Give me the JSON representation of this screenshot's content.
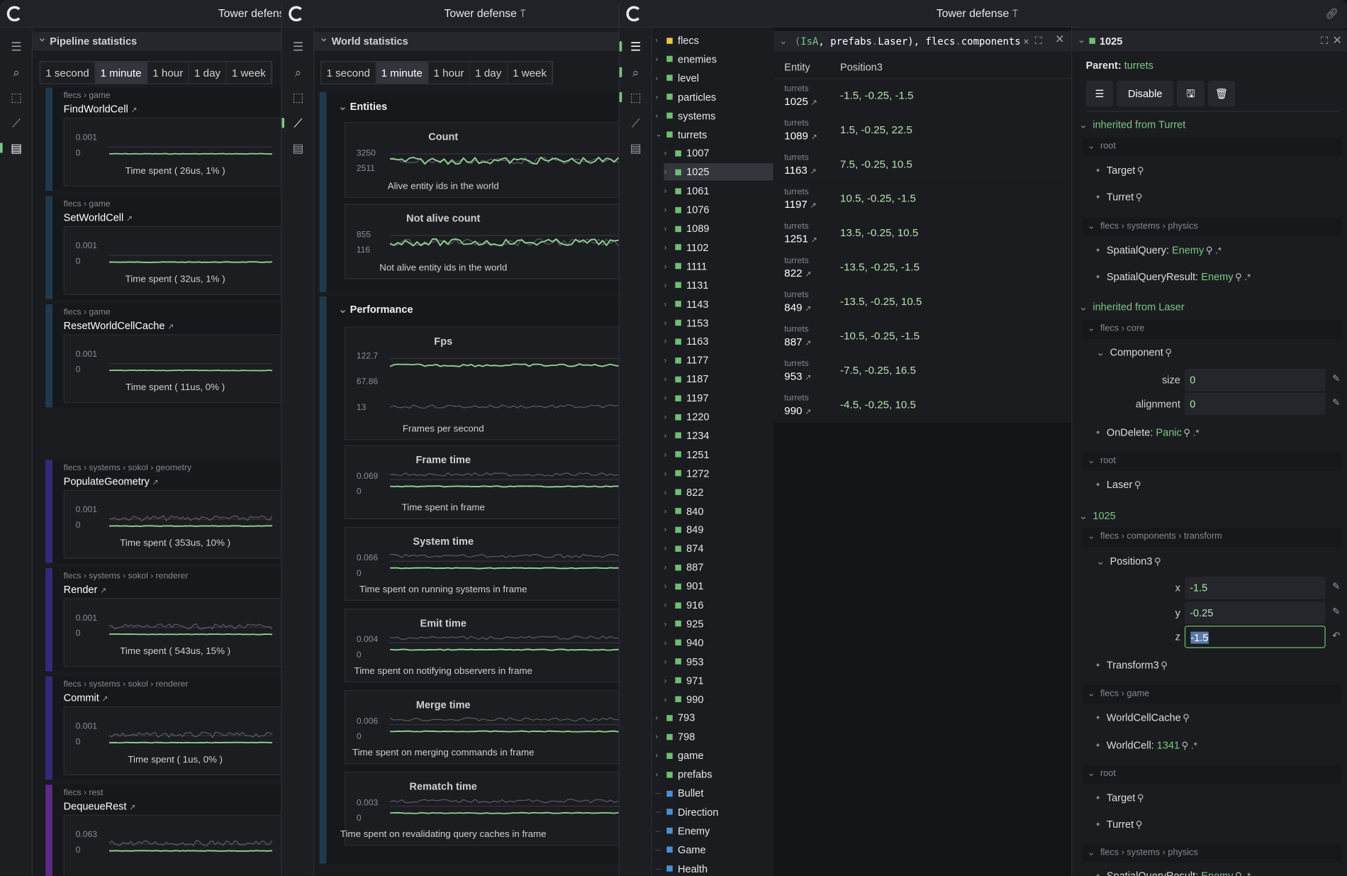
{
  "app_title": "Tower defense",
  "time_ranges": [
    "1 second",
    "1 minute",
    "1 hour",
    "1 day",
    "1 week"
  ],
  "selected_range": "1 minute",
  "pipeline": {
    "title": "Pipeline statistics",
    "systems": [
      {
        "path": "flecs › game",
        "name": "FindWorldCell",
        "ticks": [
          "0.001",
          "0"
        ],
        "caption": "Time spent ( 26us, 1% )",
        "color": "#1f3a4c"
      },
      {
        "path": "flecs › game",
        "name": "SetWorldCell",
        "ticks": [
          "0.001",
          "0"
        ],
        "caption": "Time spent ( 32us, 1% )",
        "color": "#1f3a4c"
      },
      {
        "path": "flecs › game",
        "name": "ResetWorldCellCache",
        "ticks": [
          "0.001",
          "0"
        ],
        "caption": "Time spent ( 11us, 0% )",
        "color": "#1f3a4c"
      },
      {
        "path": "flecs › systems › sokol › geometry",
        "name": "PopulateGeometry",
        "ticks": [
          "0.001",
          "0"
        ],
        "caption": "Time spent ( 353us, 10% )",
        "color": "#34297a"
      },
      {
        "path": "flecs › systems › sokol › renderer",
        "name": "Render",
        "ticks": [
          "0.001",
          "0"
        ],
        "caption": "Time spent ( 543us, 15% )",
        "color": "#34297a"
      },
      {
        "path": "flecs › systems › sokol › renderer",
        "name": "Commit",
        "ticks": [
          "0.001",
          "0"
        ],
        "caption": "Time spent ( 1us, 0% )",
        "color": "#34297a"
      },
      {
        "path": "flecs › rest",
        "name": "DequeueRest",
        "ticks": [
          "0.063",
          "0"
        ],
        "caption": "",
        "color": "#5e2a87"
      }
    ]
  },
  "world": {
    "title": "World statistics",
    "sections": [
      {
        "title": "Entities",
        "charts": [
          {
            "title": "Count",
            "ticks": [
              "3250",
              "2511"
            ],
            "caption": "Alive entity ids in the world"
          },
          {
            "title": "Not alive count",
            "ticks": [
              "855",
              "116"
            ],
            "caption": "Not alive entity ids in the world"
          }
        ]
      },
      {
        "title": "Performance",
        "charts": [
          {
            "title": "Fps",
            "ticks": [
              "122.7",
              "67.86",
              "13"
            ],
            "caption": "Frames per second"
          },
          {
            "title": "Frame time",
            "ticks": [
              "0.069",
              "0"
            ],
            "caption": "Time spent in frame"
          },
          {
            "title": "System time",
            "ticks": [
              "0.066",
              "0"
            ],
            "caption": "Time spent on running systems in frame"
          },
          {
            "title": "Emit time",
            "ticks": [
              "0.004",
              "0"
            ],
            "caption": "Time spent on notifying observers in frame"
          },
          {
            "title": "Merge time",
            "ticks": [
              "0.006",
              "0"
            ],
            "caption": "Time spent on merging commands in frame"
          },
          {
            "title": "Rematch time",
            "ticks": [
              "0.003",
              "0"
            ],
            "caption": "Time spent on revalidating query caches in frame"
          }
        ]
      }
    ]
  },
  "tree": {
    "items": [
      {
        "label": "flecs",
        "color": "#e8c547",
        "level": 0,
        "chev": true
      },
      {
        "label": "enemies",
        "color": "#6fbf73",
        "level": 0,
        "chev": true
      },
      {
        "label": "level",
        "color": "#6fbf73",
        "level": 0,
        "chev": true
      },
      {
        "label": "particles",
        "color": "#6fbf73",
        "level": 0,
        "chev": true
      },
      {
        "label": "systems",
        "color": "#6fbf73",
        "level": 0,
        "chev": true
      },
      {
        "label": "turrets",
        "color": "#6fbf73",
        "level": 0,
        "chev": true,
        "open": true
      },
      {
        "label": "1007",
        "color": "#6fbf73",
        "level": 1,
        "chev": true
      },
      {
        "label": "1025",
        "color": "#6fbf73",
        "level": 1,
        "chev": true,
        "selected": true
      },
      {
        "label": "1061",
        "color": "#6fbf73",
        "level": 1,
        "chev": true
      },
      {
        "label": "1076",
        "color": "#6fbf73",
        "level": 1,
        "chev": true
      },
      {
        "label": "1089",
        "color": "#6fbf73",
        "level": 1,
        "chev": true
      },
      {
        "label": "1102",
        "color": "#6fbf73",
        "level": 1,
        "chev": true
      },
      {
        "label": "1111",
        "color": "#6fbf73",
        "level": 1,
        "chev": true
      },
      {
        "label": "1131",
        "color": "#6fbf73",
        "level": 1,
        "chev": true
      },
      {
        "label": "1143",
        "color": "#6fbf73",
        "level": 1,
        "chev": true
      },
      {
        "label": "1153",
        "color": "#6fbf73",
        "level": 1,
        "chev": true
      },
      {
        "label": "1163",
        "color": "#6fbf73",
        "level": 1,
        "chev": true
      },
      {
        "label": "1177",
        "color": "#6fbf73",
        "level": 1,
        "chev": true
      },
      {
        "label": "1187",
        "color": "#6fbf73",
        "level": 1,
        "chev": true
      },
      {
        "label": "1197",
        "color": "#6fbf73",
        "level": 1,
        "chev": true
      },
      {
        "label": "1220",
        "color": "#6fbf73",
        "level": 1,
        "chev": true
      },
      {
        "label": "1234",
        "color": "#6fbf73",
        "level": 1,
        "chev": true
      },
      {
        "label": "1251",
        "color": "#6fbf73",
        "level": 1,
        "chev": true
      },
      {
        "label": "1272",
        "color": "#6fbf73",
        "level": 1,
        "chev": true
      },
      {
        "label": "822",
        "color": "#6fbf73",
        "level": 1,
        "chev": true
      },
      {
        "label": "840",
        "color": "#6fbf73",
        "level": 1,
        "chev": true
      },
      {
        "label": "849",
        "color": "#6fbf73",
        "level": 1,
        "chev": true
      },
      {
        "label": "874",
        "color": "#6fbf73",
        "level": 1,
        "chev": true
      },
      {
        "label": "887",
        "color": "#6fbf73",
        "level": 1,
        "chev": true
      },
      {
        "label": "901",
        "color": "#6fbf73",
        "level": 1,
        "chev": true
      },
      {
        "label": "916",
        "color": "#6fbf73",
        "level": 1,
        "chev": true
      },
      {
        "label": "925",
        "color": "#6fbf73",
        "level": 1,
        "chev": true
      },
      {
        "label": "940",
        "color": "#6fbf73",
        "level": 1,
        "chev": true
      },
      {
        "label": "953",
        "color": "#6fbf73",
        "level": 1,
        "chev": true
      },
      {
        "label": "971",
        "color": "#6fbf73",
        "level": 1,
        "chev": true
      },
      {
        "label": "990",
        "color": "#6fbf73",
        "level": 1,
        "chev": true
      },
      {
        "label": "793",
        "color": "#6fbf73",
        "level": 0,
        "chev": true
      },
      {
        "label": "798",
        "color": "#6fbf73",
        "level": 0,
        "chev": true
      },
      {
        "label": "game",
        "color": "#6fbf73",
        "level": 0,
        "chev": true
      },
      {
        "label": "prefabs",
        "color": "#6fbf73",
        "level": 0,
        "chev": true
      },
      {
        "label": "Bullet",
        "color": "#4a8fd6",
        "level": 0,
        "chev": false
      },
      {
        "label": "Direction",
        "color": "#4a8fd6",
        "level": 0,
        "chev": false
      },
      {
        "label": "Enemy",
        "color": "#4a8fd6",
        "level": 0,
        "chev": false
      },
      {
        "label": "Game",
        "color": "#4a8fd6",
        "level": 0,
        "chev": false
      },
      {
        "label": "Health",
        "color": "#4a8fd6",
        "level": 0,
        "chev": false
      }
    ]
  },
  "query": {
    "expr_parts": [
      "(",
      "IsA",
      ", prefabs",
      ".",
      "Laser), flecs",
      ".",
      "components"
    ],
    "columns": [
      "Entity",
      "Position3"
    ],
    "rows": [
      {
        "parent": "turrets",
        "entity": "1025",
        "value": "-1.5, -0.25, -1.5"
      },
      {
        "parent": "turrets",
        "entity": "1089",
        "value": "1.5, -0.25, 22.5"
      },
      {
        "parent": "turrets",
        "entity": "1163",
        "value": "7.5, -0.25, 10.5"
      },
      {
        "parent": "turrets",
        "entity": "1197",
        "value": "10.5, -0.25, -1.5"
      },
      {
        "parent": "turrets",
        "entity": "1251",
        "value": "13.5, -0.25, 10.5"
      },
      {
        "parent": "turrets",
        "entity": "822",
        "value": "-13.5, -0.25, -1.5"
      },
      {
        "parent": "turrets",
        "entity": "849",
        "value": "-13.5, -0.25, 10.5"
      },
      {
        "parent": "turrets",
        "entity": "887",
        "value": "-10.5, -0.25, -1.5"
      },
      {
        "parent": "turrets",
        "entity": "953",
        "value": "-7.5, -0.25, 16.5"
      },
      {
        "parent": "turrets",
        "entity": "990",
        "value": "-4.5, -0.25, 10.5"
      }
    ]
  },
  "inspector": {
    "entity": "1025",
    "parent_label": "Parent:",
    "parent": "turrets",
    "disable_label": "Disable",
    "items": [
      {
        "type": "section",
        "label": "inherited from Turret"
      },
      {
        "type": "group",
        "label": "root"
      },
      {
        "type": "item",
        "label": "Target"
      },
      {
        "type": "item",
        "label": "Turret"
      },
      {
        "type": "group",
        "label": "flecs › systems › physics"
      },
      {
        "type": "item",
        "label": "SpatialQuery:",
        "value": "Enemy",
        "wild": true
      },
      {
        "type": "item",
        "label": "SpatialQueryResult:",
        "value": "Enemy",
        "wild": true
      },
      {
        "type": "section",
        "label": "inherited from Laser"
      },
      {
        "type": "group",
        "label": "flecs › core"
      },
      {
        "type": "comp",
        "label": "Component"
      },
      {
        "type": "field",
        "label": "size",
        "value": "0",
        "icon": "pencil"
      },
      {
        "type": "field",
        "label": "alignment",
        "value": "0",
        "icon": "pencil"
      },
      {
        "type": "item",
        "label": "OnDelete:",
        "value": "Panic",
        "wild": true
      },
      {
        "type": "group",
        "label": "root"
      },
      {
        "type": "item",
        "label": "Laser"
      },
      {
        "type": "section",
        "label": "1025"
      },
      {
        "type": "group",
        "label": "flecs › components › transform"
      },
      {
        "type": "comp",
        "label": "Position3"
      },
      {
        "type": "field",
        "label": "x",
        "value": "-1.5",
        "icon": "pencil"
      },
      {
        "type": "field",
        "label": "y",
        "value": "-0.25",
        "icon": "pencil"
      },
      {
        "type": "field",
        "label": "z",
        "value": "-1.5",
        "icon": "undo",
        "focused": true
      },
      {
        "type": "item",
        "label": "Transform3"
      },
      {
        "type": "group",
        "label": "flecs › game"
      },
      {
        "type": "item",
        "label": "WorldCellCache"
      },
      {
        "type": "item",
        "label": "WorldCell:",
        "value": "1341",
        "wild": true
      },
      {
        "type": "group",
        "label": "root"
      },
      {
        "type": "item",
        "label": "Target"
      },
      {
        "type": "item",
        "label": "Turret"
      },
      {
        "type": "group",
        "label": "flecs › systems › physics"
      },
      {
        "type": "item",
        "label": "SpatialQueryResult:",
        "value": "Enemy",
        "wild": true
      }
    ]
  },
  "colors": {
    "accent": "#7cc784",
    "value": "#b5e0b0"
  }
}
